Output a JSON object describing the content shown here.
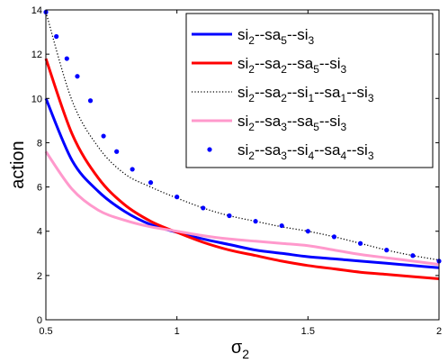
{
  "chart_data": {
    "type": "line",
    "xlabel_base": "σ",
    "xlabel_sub": "2",
    "ylabel": "action",
    "xlim": [
      0.5,
      2
    ],
    "ylim": [
      0,
      14
    ],
    "grid": false,
    "legend_position": "top-right",
    "x_ticks": [
      "0.5",
      "1",
      "1.5",
      "2"
    ],
    "y_ticks": [
      "0",
      "2",
      "4",
      "6",
      "8",
      "10",
      "12",
      "14"
    ],
    "series": [
      {
        "name": "si2--sa5--si3",
        "legend_parts": [
          [
            "si",
            "2"
          ],
          [
            "--sa",
            "5"
          ],
          [
            "--si",
            "3"
          ]
        ],
        "color": "#0000ff",
        "style": "solid",
        "x": [
          0.5,
          0.6,
          0.7,
          0.8,
          0.9,
          1.0,
          1.1,
          1.2,
          1.3,
          1.4,
          1.5,
          1.6,
          1.7,
          1.8,
          1.9,
          2.0
        ],
        "y": [
          10.0,
          7.2,
          5.8,
          4.9,
          4.3,
          3.95,
          3.65,
          3.4,
          3.15,
          3.0,
          2.85,
          2.75,
          2.65,
          2.55,
          2.45,
          2.35
        ]
      },
      {
        "name": "si2--sa2--sa5--si3",
        "legend_parts": [
          [
            "si",
            "2"
          ],
          [
            "--sa",
            "2"
          ],
          [
            "--sa",
            "5"
          ],
          [
            "--si",
            "3"
          ]
        ],
        "color": "#ff0000",
        "style": "solid",
        "x": [
          0.5,
          0.6,
          0.7,
          0.8,
          0.9,
          1.0,
          1.1,
          1.2,
          1.3,
          1.4,
          1.5,
          1.6,
          1.7,
          1.8,
          1.9,
          2.0
        ],
        "y": [
          11.8,
          8.4,
          6.4,
          5.2,
          4.45,
          3.95,
          3.5,
          3.15,
          2.9,
          2.65,
          2.45,
          2.3,
          2.15,
          2.05,
          1.95,
          1.85
        ]
      },
      {
        "name": "si2--sa2--si1--sa1--si3",
        "legend_parts": [
          [
            "si",
            "2"
          ],
          [
            "--sa",
            "2"
          ],
          [
            "--si",
            "1"
          ],
          [
            "--sa",
            "1"
          ],
          [
            "--si",
            "3"
          ]
        ],
        "color": "#000000",
        "style": "dotted",
        "x": [
          0.5,
          0.6,
          0.7,
          0.8,
          0.9,
          1.0,
          1.1,
          1.2,
          1.3,
          1.4,
          1.5,
          1.6,
          1.7,
          1.8,
          1.9,
          2.0
        ],
        "y": [
          13.9,
          9.9,
          7.8,
          6.6,
          6.0,
          5.5,
          5.05,
          4.7,
          4.45,
          4.2,
          4.0,
          3.75,
          3.45,
          3.15,
          2.9,
          2.7
        ]
      },
      {
        "name": "si2--sa3--sa5--si3",
        "legend_parts": [
          [
            "si",
            "2"
          ],
          [
            "--sa",
            "3"
          ],
          [
            "--sa",
            "5"
          ],
          [
            "--si",
            "3"
          ]
        ],
        "color": "#ff99cc",
        "style": "solid",
        "x": [
          0.5,
          0.6,
          0.7,
          0.8,
          0.9,
          1.0,
          1.1,
          1.2,
          1.3,
          1.4,
          1.5,
          1.6,
          1.7,
          1.8,
          1.9,
          2.0
        ],
        "y": [
          7.6,
          5.9,
          4.95,
          4.5,
          4.2,
          4.0,
          3.8,
          3.65,
          3.55,
          3.45,
          3.35,
          3.15,
          2.95,
          2.8,
          2.65,
          2.5
        ]
      },
      {
        "name": "si2--sa3--si4--sa4--si3",
        "legend_parts": [
          [
            "si",
            "2"
          ],
          [
            "--sa",
            "3"
          ],
          [
            "--si",
            "4"
          ],
          [
            "--sa",
            "4"
          ],
          [
            "--si",
            "3"
          ]
        ],
        "color": "#0000ff",
        "style": "markers",
        "x": [
          0.5,
          0.54,
          0.58,
          0.62,
          0.67,
          0.72,
          0.77,
          0.83,
          0.9,
          1.0,
          1.1,
          1.2,
          1.3,
          1.4,
          1.5,
          1.6,
          1.7,
          1.8,
          1.9,
          2.0
        ],
        "y": [
          13.9,
          12.8,
          11.8,
          11.0,
          9.9,
          8.3,
          7.6,
          6.8,
          6.2,
          5.55,
          5.05,
          4.7,
          4.45,
          4.25,
          4.0,
          3.75,
          3.45,
          3.15,
          2.9,
          2.65
        ]
      }
    ]
  }
}
